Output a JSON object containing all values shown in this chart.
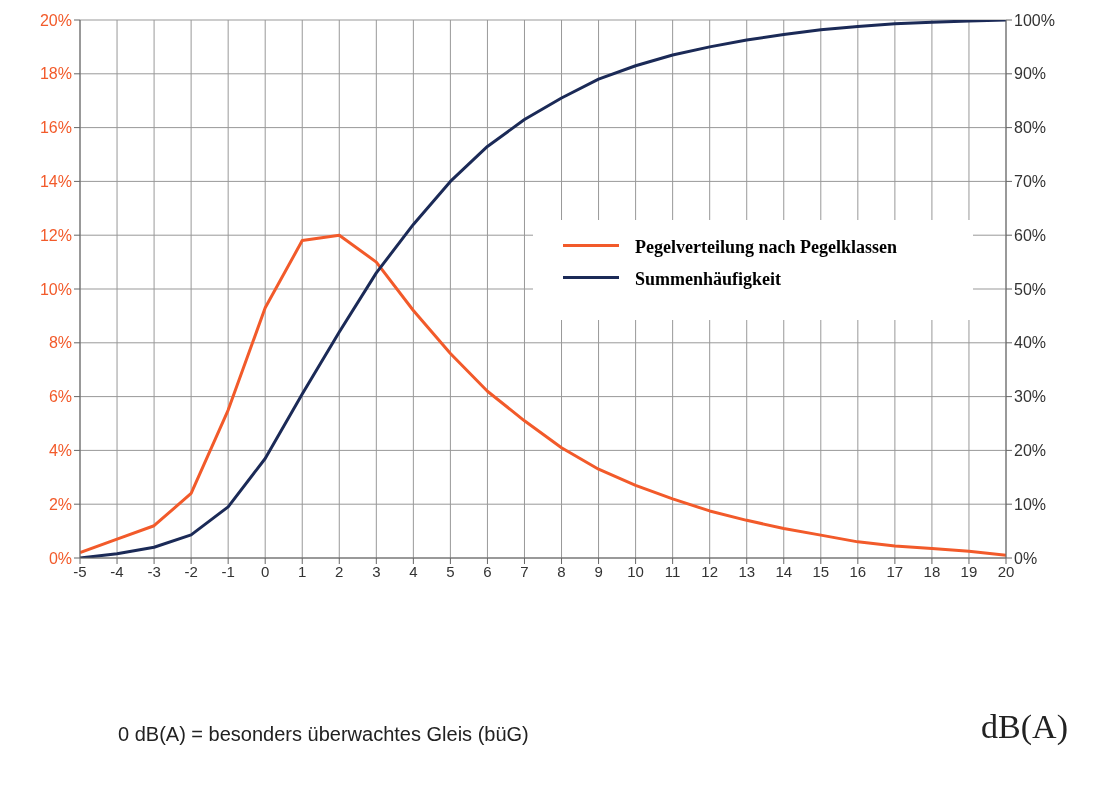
{
  "chart_data": {
    "type": "line",
    "x": [
      -5,
      -4,
      -3,
      -2,
      -1,
      0,
      1,
      2,
      3,
      4,
      5,
      6,
      7,
      8,
      9,
      10,
      11,
      12,
      13,
      14,
      15,
      16,
      17,
      18,
      19,
      20
    ],
    "series": [
      {
        "name": "Pegelverteilung nach Pegelklassen",
        "color": "#f25a2a",
        "values": [
          0.2,
          0.7,
          1.2,
          2.4,
          5.5,
          9.3,
          11.8,
          12.0,
          11.0,
          9.2,
          7.6,
          6.2,
          5.1,
          4.1,
          3.3,
          2.7,
          2.2,
          1.75,
          1.4,
          1.1,
          0.85,
          0.6,
          0.45,
          0.35,
          0.25,
          0.1
        ]
      },
      {
        "name": "Summenhäufigkeit",
        "color": "#1b2a57",
        "axis": "y2",
        "values": [
          0,
          0.8,
          2,
          4.3,
          9.5,
          18.5,
          30.5,
          42,
          53,
          62,
          70,
          76.5,
          81.5,
          85.5,
          89,
          91.5,
          93.5,
          95,
          96.3,
          97.3,
          98.2,
          98.8,
          99.3,
          99.6,
          99.8,
          100
        ]
      }
    ],
    "xlabel": "dB(A)",
    "annotations": [
      "0 dB(A) = besonders überwachtes Gleis (büG)"
    ],
    "xlim": [
      -5,
      20
    ],
    "xticks": [
      -5,
      -4,
      -3,
      -2,
      -1,
      0,
      1,
      2,
      3,
      4,
      5,
      6,
      7,
      8,
      9,
      10,
      11,
      12,
      13,
      14,
      15,
      16,
      17,
      18,
      19,
      20
    ],
    "ylim": [
      0,
      20
    ],
    "yticks": [
      {
        "value": 0,
        "label": "0%"
      },
      {
        "value": 2,
        "label": "2%"
      },
      {
        "value": 4,
        "label": "4%"
      },
      {
        "value": 6,
        "label": "6%"
      },
      {
        "value": 8,
        "label": "8%"
      },
      {
        "value": 10,
        "label": "10%"
      },
      {
        "value": 12,
        "label": "12%"
      },
      {
        "value": 14,
        "label": "14%"
      },
      {
        "value": 16,
        "label": "16%"
      },
      {
        "value": 18,
        "label": "18%"
      },
      {
        "value": 20,
        "label": "20%"
      }
    ],
    "y2lim": [
      0,
      100
    ],
    "y2ticks": [
      {
        "value": 0,
        "label": "0%"
      },
      {
        "value": 10,
        "label": "10%"
      },
      {
        "value": 20,
        "label": "20%"
      },
      {
        "value": 30,
        "label": "30%"
      },
      {
        "value": 40,
        "label": "40%"
      },
      {
        "value": 50,
        "label": "50%"
      },
      {
        "value": 60,
        "label": "60%"
      },
      {
        "value": 70,
        "label": "70%"
      },
      {
        "value": 80,
        "label": "80%"
      },
      {
        "value": 90,
        "label": "90%"
      },
      {
        "value": 100,
        "label": "100%"
      }
    ],
    "grid": true,
    "legend": "right"
  }
}
